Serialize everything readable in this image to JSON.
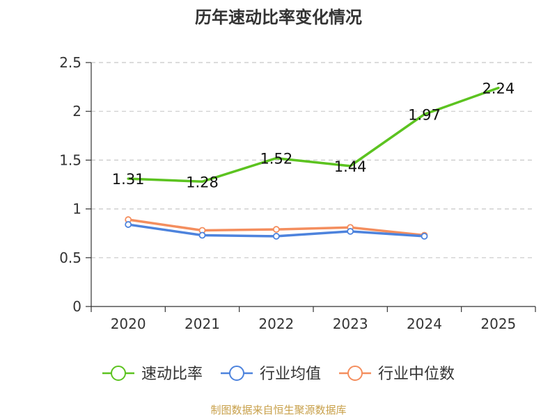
{
  "chart_data": {
    "type": "line",
    "title": "历年速动比率变化情况",
    "categories": [
      "2020",
      "2021",
      "2022",
      "2023",
      "2024",
      "2025"
    ],
    "ylim": [
      0,
      2.5
    ],
    "yticks": [
      "0",
      "0.5",
      "1",
      "1.5",
      "2",
      "2.5"
    ],
    "ytick_values": [
      0,
      0.5,
      1,
      1.5,
      2,
      2.5
    ],
    "grid": true,
    "legend_position": "bottom",
    "series": [
      {
        "name": "速动比率",
        "color": "#5cc320",
        "values": [
          1.31,
          1.28,
          1.52,
          1.44,
          1.97,
          2.24
        ],
        "labels": [
          "1.31",
          "1.28",
          "1.52",
          "1.44",
          "1.97",
          "2.24"
        ]
      },
      {
        "name": "行业均值",
        "color": "#4d83dd",
        "values": [
          0.84,
          0.73,
          0.72,
          0.77,
          0.72,
          null
        ]
      },
      {
        "name": "行业中位数",
        "color": "#f48e5e",
        "values": [
          0.89,
          0.78,
          0.79,
          0.81,
          0.73,
          null
        ]
      }
    ],
    "source": "制图数据来自恒生聚源数据库"
  }
}
